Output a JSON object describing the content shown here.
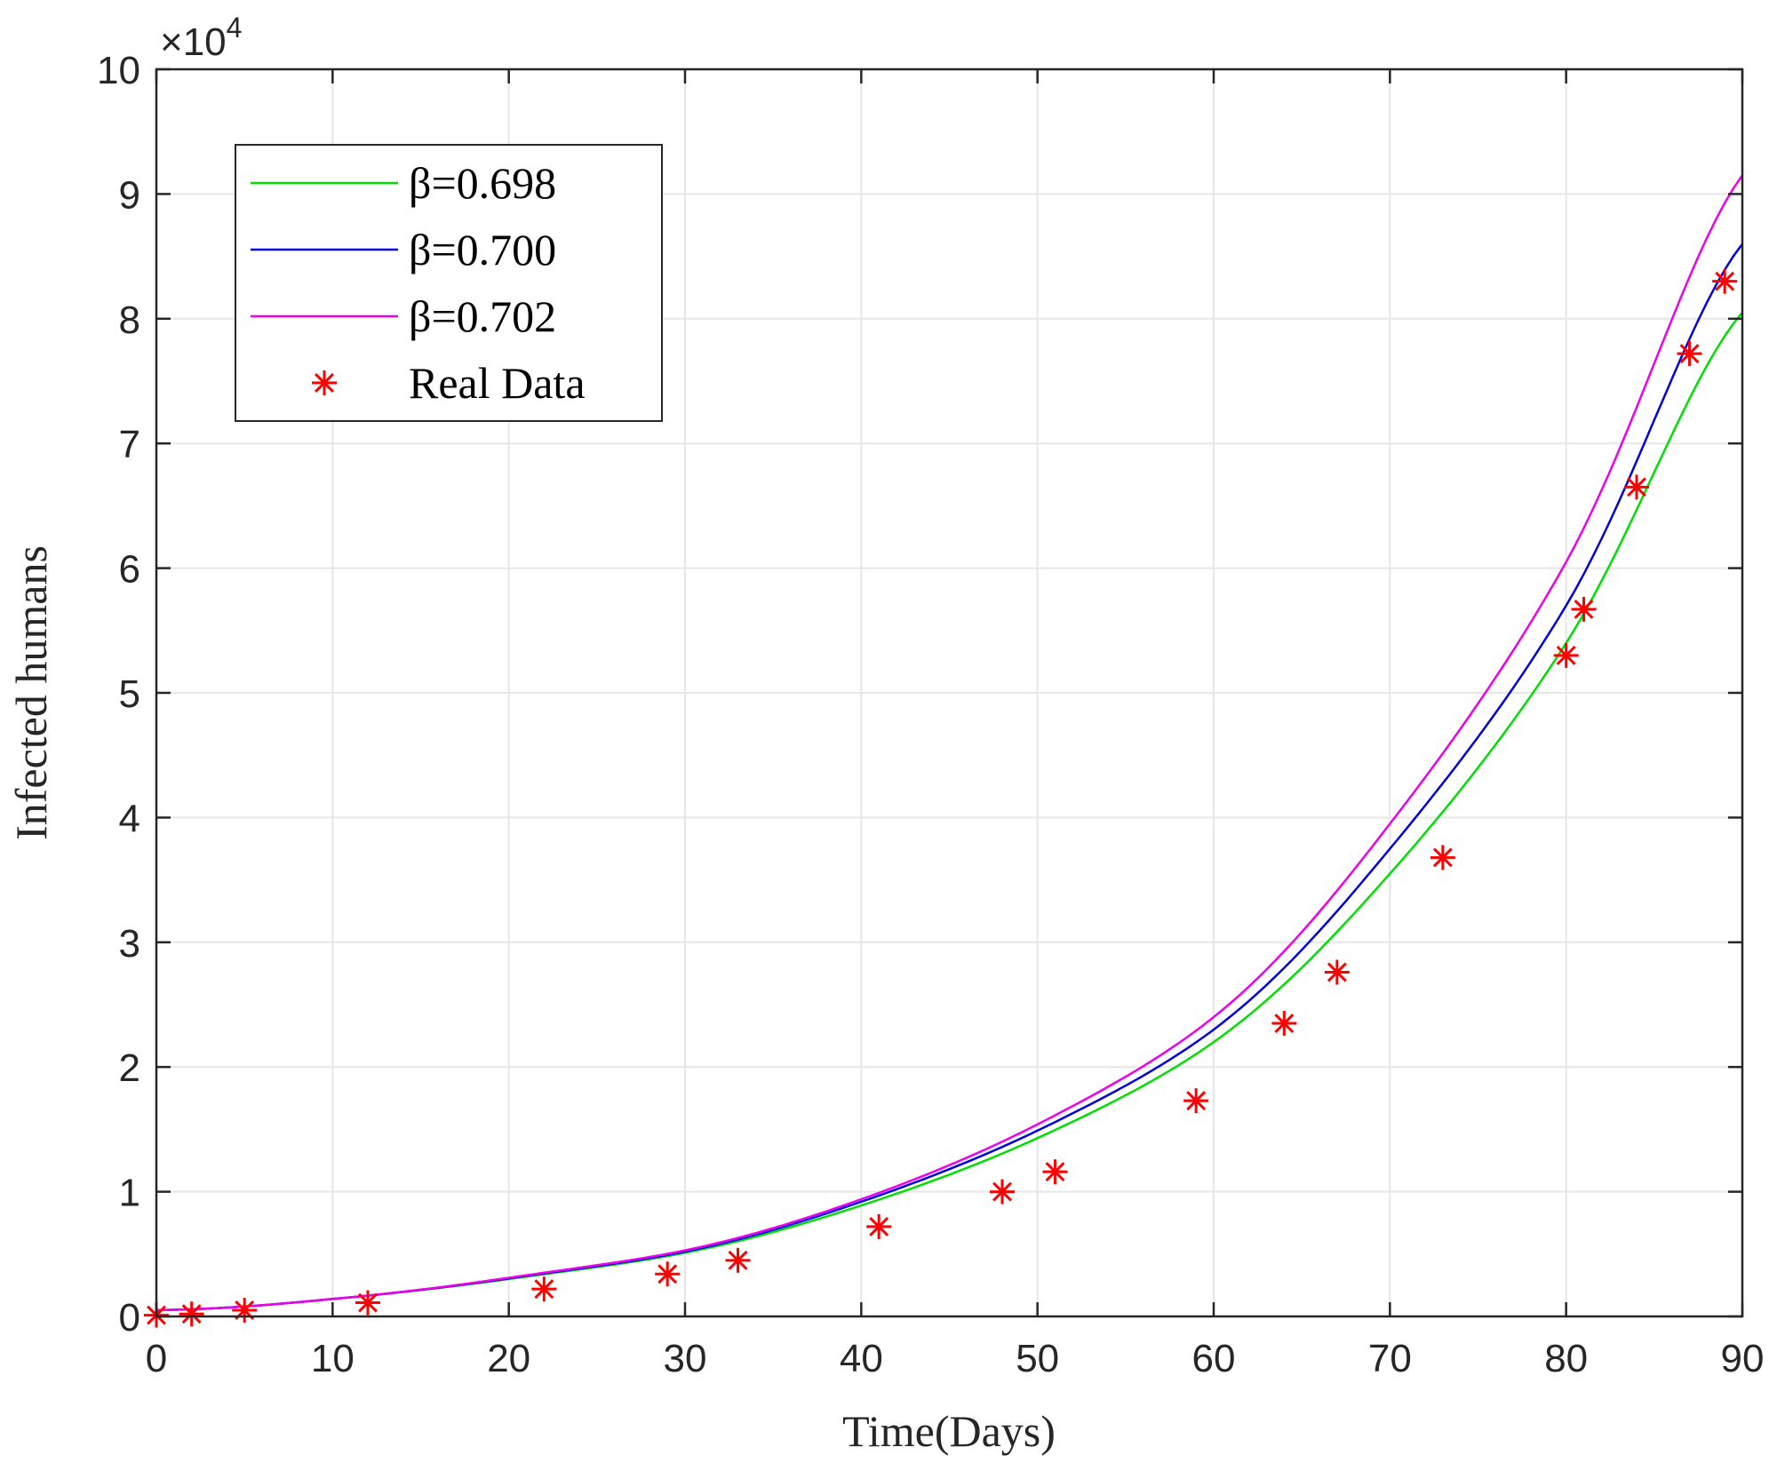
{
  "chart_data": {
    "type": "line",
    "xlabel": "Time(Days)",
    "ylabel": "Infected humans",
    "y_exponent_label": "×10",
    "y_exponent_power": "4",
    "xlim": [
      0,
      90
    ],
    "ylim": [
      0,
      100000
    ],
    "xticks": [
      0,
      10,
      20,
      30,
      40,
      50,
      60,
      70,
      80,
      90
    ],
    "yticks": [
      0,
      10000,
      20000,
      30000,
      40000,
      50000,
      60000,
      70000,
      80000,
      90000,
      100000
    ],
    "ytick_labels": [
      "0",
      "1",
      "2",
      "3",
      "4",
      "5",
      "6",
      "7",
      "8",
      "9",
      "10"
    ],
    "grid": true,
    "legend_placement": "top-left",
    "series": [
      {
        "name": "β=0.698",
        "color": "#00e000",
        "type": "line",
        "x": [
          0,
          10,
          20,
          30,
          40,
          50,
          60,
          70,
          80,
          90
        ],
        "y": [
          500,
          1400,
          3000,
          5100,
          8900,
          14300,
          22000,
          35500,
          54000,
          80500
        ]
      },
      {
        "name": "β=0.700",
        "color": "#0000e0",
        "type": "line",
        "x": [
          0,
          10,
          20,
          30,
          40,
          50,
          60,
          70,
          80,
          90
        ],
        "y": [
          500,
          1400,
          3050,
          5200,
          9200,
          14900,
          23000,
          37500,
          57000,
          86000
        ]
      },
      {
        "name": "β=0.702",
        "color": "#ee00ee",
        "type": "line",
        "x": [
          0,
          10,
          20,
          30,
          40,
          50,
          60,
          70,
          80,
          90
        ],
        "y": [
          500,
          1400,
          3100,
          5300,
          9400,
          15400,
          24000,
          39500,
          60500,
          91500
        ]
      },
      {
        "name": "Real Data",
        "color": "#ff0000",
        "type": "scatter",
        "marker": "asterisk",
        "x": [
          0,
          2,
          5,
          12,
          22,
          29,
          33,
          41,
          48,
          51,
          59,
          64,
          67,
          73,
          80,
          81,
          84,
          87,
          89
        ],
        "y": [
          100,
          200,
          500,
          1100,
          2200,
          3400,
          4500,
          7200,
          10000,
          11600,
          17300,
          23500,
          27600,
          36800,
          53000,
          56700,
          66500,
          77200,
          83000
        ]
      }
    ]
  }
}
